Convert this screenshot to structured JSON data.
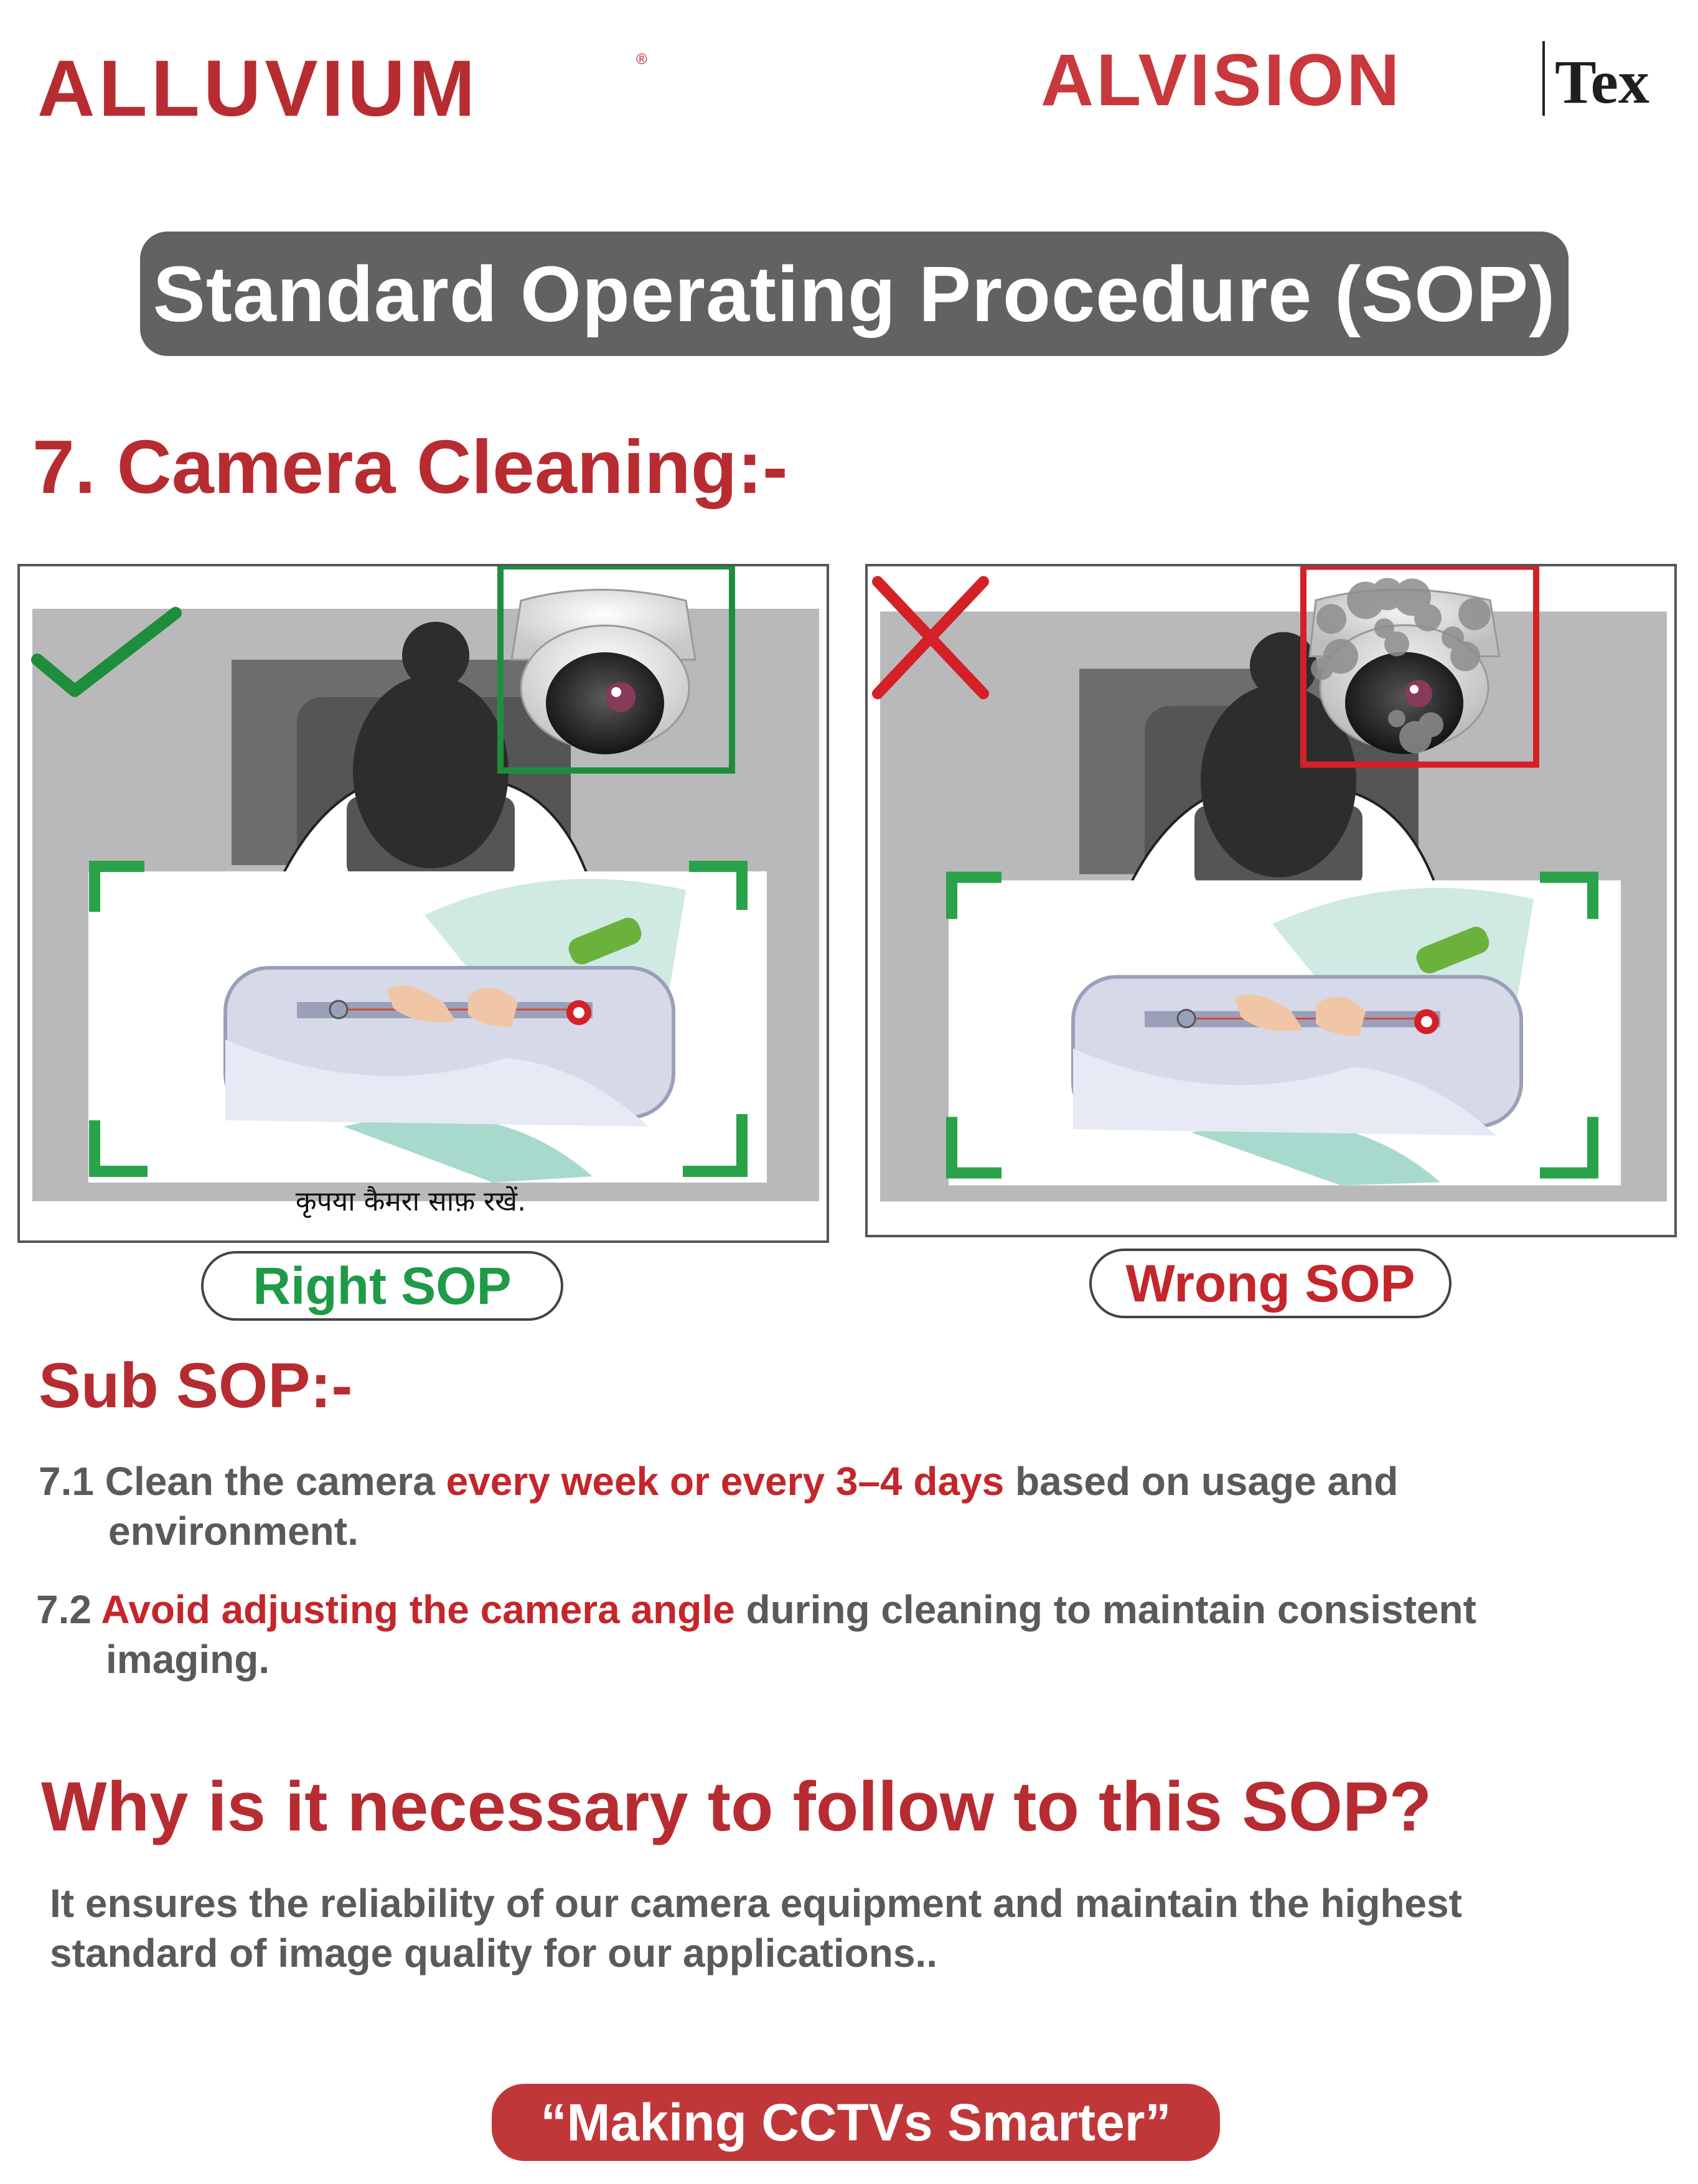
{
  "header": {
    "left_logo": {
      "text": "ALLUVIUM",
      "mark": "®"
    },
    "right_logo": {
      "text": "ALVISION",
      "suffix": "Tex"
    }
  },
  "title": "Standard Operating Procedure (SOP)",
  "section": {
    "number": "7.",
    "title": "Camera Cleaning:-"
  },
  "panels": {
    "right": {
      "label": "Right SOP",
      "caption": "कृपया कैमरा साफ़ रखें.",
      "mark_icon": "check-icon",
      "status_color": "#1f8e3c"
    },
    "wrong": {
      "label": "Wrong SOP",
      "mark_icon": "cross-icon",
      "status_color": "#d42027"
    }
  },
  "sub_sop": {
    "title": "Sub SOP:-",
    "items": [
      {
        "num": "7.1",
        "before": "Clean the camera",
        "highlight": "every week or every 3–4 days",
        "after": "based on usage and",
        "continuation": "environment."
      },
      {
        "num": "7.2",
        "highlight": "Avoid adjusting the camera angle",
        "after": "during cleaning to maintain consistent",
        "continuation": "imaging."
      }
    ]
  },
  "why": {
    "title": "Why is it necessary to follow to this SOP?",
    "line1": "It ensures the reliability of our camera equipment and maintain the highest",
    "line2": "standard of image quality for our applications.."
  },
  "footer": {
    "tagline": "“Making CCTVs Smarter”"
  },
  "colors": {
    "brand_red": "#b72c31",
    "right_green": "#1f9a47",
    "wrong_red": "#c3262b",
    "banner_gray": "#626262",
    "body_gray": "#5a5a5a"
  }
}
